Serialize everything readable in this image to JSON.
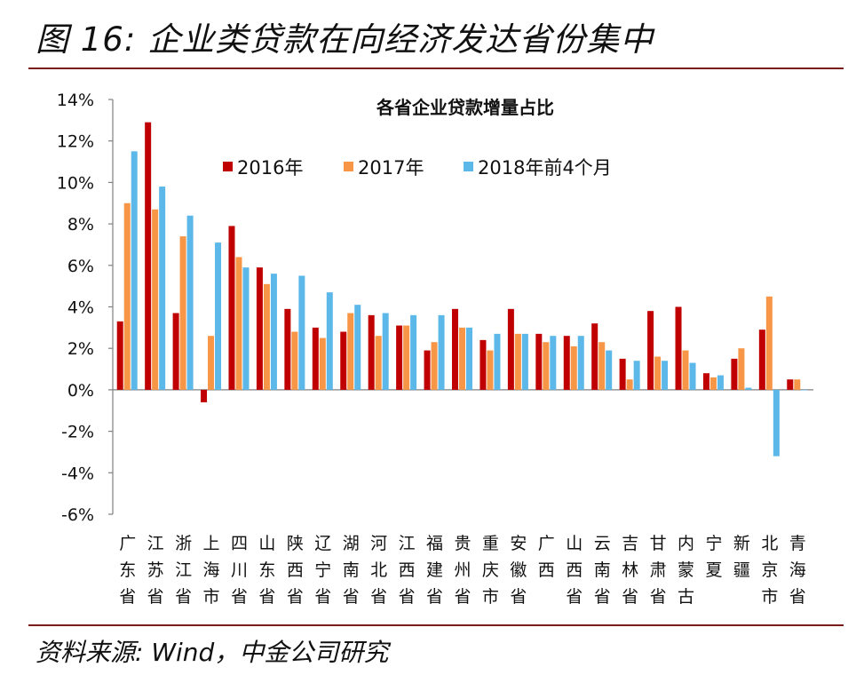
{
  "figure_title": "图 16: 企业类贷款在向经济发达省份集中",
  "source": "资料来源: Wind，中金公司研究",
  "chart_data": {
    "type": "bar",
    "title": "各省企业贷款增量占比",
    "xlabel": "",
    "ylabel": "",
    "ylim": [
      -6,
      14
    ],
    "yticks": [
      14,
      12,
      10,
      8,
      6,
      4,
      2,
      0,
      -2,
      -4,
      -6
    ],
    "ytick_labels": [
      "14%",
      "12%",
      "10%",
      "8%",
      "6%",
      "4%",
      "2%",
      "0%",
      "-2%",
      "-4%",
      "-6%"
    ],
    "legend_position": "top-center",
    "grid": false,
    "categories": [
      "广东省",
      "江苏省",
      "浙江省",
      "上海市",
      "四川省",
      "山东省",
      "陕西省",
      "辽宁省",
      "湖南省",
      "河北省",
      "江西省",
      "福建省",
      "贵州省",
      "重庆市",
      "安徽省",
      "广西",
      "山西省",
      "云南省",
      "吉林省",
      "甘肃省",
      "内蒙古",
      "宁夏",
      "新疆",
      "北京市",
      "青海省"
    ],
    "series": [
      {
        "name": "2016年",
        "color": "#c00000",
        "values": [
          3.3,
          12.9,
          3.7,
          -0.6,
          7.9,
          5.9,
          3.9,
          3.0,
          2.8,
          3.6,
          3.1,
          1.9,
          3.9,
          2.4,
          3.9,
          2.7,
          2.6,
          3.2,
          1.5,
          3.8,
          4.0,
          0.8,
          1.5,
          2.9,
          0.5
        ]
      },
      {
        "name": "2017年",
        "color": "#f79646",
        "values": [
          9.0,
          8.7,
          7.4,
          2.6,
          6.4,
          5.1,
          2.8,
          2.5,
          3.7,
          2.6,
          3.1,
          2.3,
          3.0,
          1.9,
          2.7,
          2.3,
          2.1,
          2.3,
          0.5,
          1.6,
          1.9,
          0.6,
          2.0,
          4.5,
          0.5
        ]
      },
      {
        "name": "2018年前4个月",
        "color": "#5bb8e8",
        "values": [
          11.5,
          9.8,
          8.4,
          7.1,
          5.9,
          5.6,
          5.5,
          4.7,
          4.1,
          3.7,
          3.6,
          3.6,
          3.0,
          2.7,
          2.7,
          2.6,
          2.6,
          1.9,
          1.4,
          1.4,
          1.3,
          0.7,
          0.1,
          -3.2,
          0.0
        ]
      }
    ]
  }
}
